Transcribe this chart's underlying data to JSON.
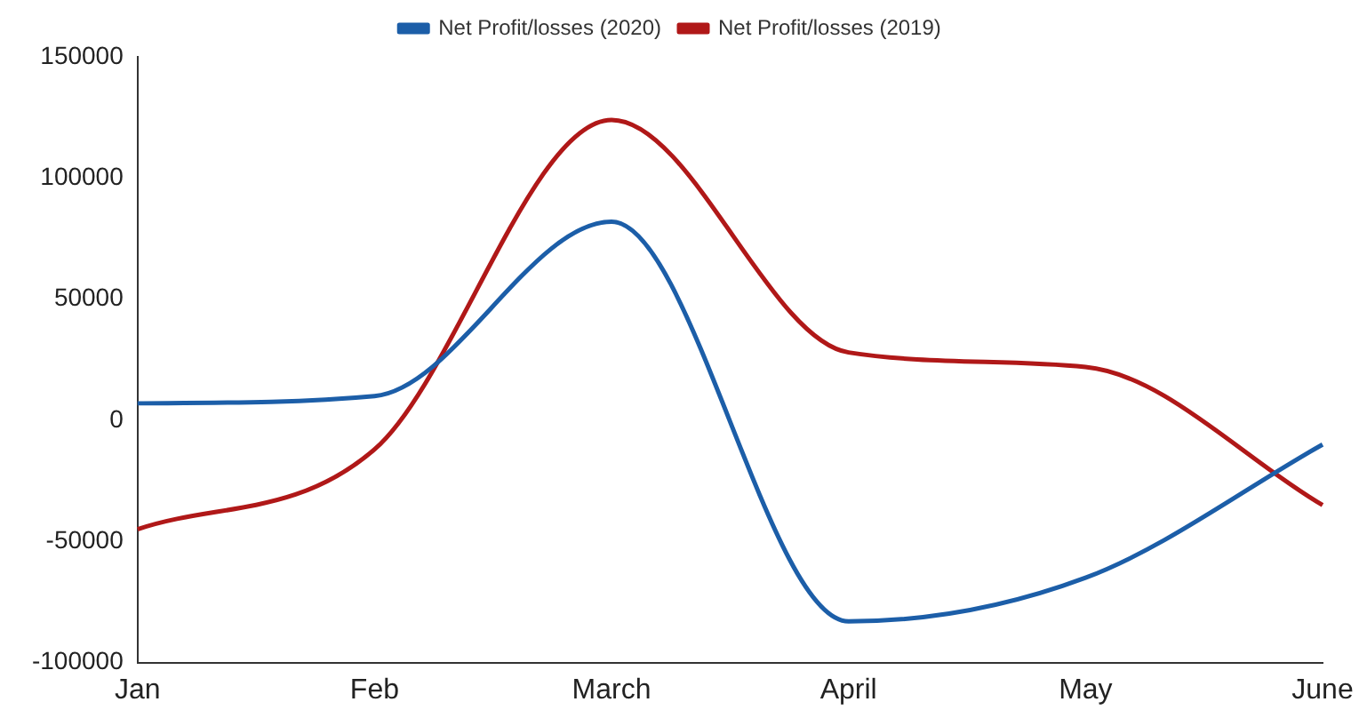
{
  "chart_data": {
    "type": "line",
    "categories": [
      "Jan",
      "Feb",
      "March",
      "April",
      "May",
      "June"
    ],
    "series": [
      {
        "name": "Net Profit/losses (2020)",
        "color": "#1c5ea8",
        "values": [
          7000,
          10000,
          82000,
          -83000,
          -65000,
          -10000
        ]
      },
      {
        "name": "Net Profit/losses (2019)",
        "color": "#b01818",
        "values": [
          -45000,
          -12000,
          124000,
          28000,
          22000,
          -35000
        ]
      }
    ],
    "ylim": [
      -100000,
      150000
    ],
    "yticks": [
      -100000,
      -50000,
      0,
      50000,
      100000,
      150000
    ],
    "grid": false,
    "legend": "top",
    "marker": "none",
    "line_style": "solid"
  }
}
